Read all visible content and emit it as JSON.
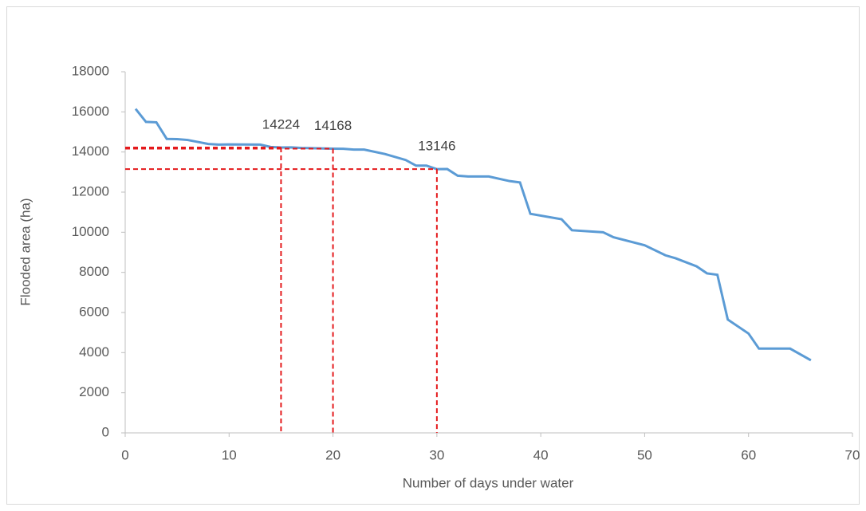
{
  "chart_data": {
    "type": "line",
    "xlabel": "Number of days under water",
    "ylabel": "Flooded area (ha)",
    "series": [
      {
        "name": "Flooded area",
        "color": "#5b9bd5",
        "x": [
          1,
          2,
          3,
          4,
          5,
          6,
          7,
          8,
          9,
          10,
          13,
          14,
          15,
          16,
          17,
          20,
          21,
          22,
          23,
          25,
          27,
          28,
          29,
          30,
          31,
          32,
          33,
          35,
          37,
          38,
          39,
          42,
          43,
          46,
          47,
          50,
          52,
          53,
          55,
          56,
          57,
          58,
          60,
          61,
          64,
          66
        ],
        "values": [
          16150,
          15500,
          15480,
          14650,
          14640,
          14600,
          14500,
          14400,
          14370,
          14380,
          14370,
          14250,
          14224,
          14230,
          14200,
          14168,
          14160,
          14120,
          14120,
          13900,
          13600,
          13320,
          13320,
          13146,
          13150,
          12820,
          12780,
          12780,
          12550,
          12480,
          10920,
          10650,
          10100,
          10000,
          9750,
          9350,
          8850,
          8700,
          8300,
          7950,
          7880,
          5650,
          4950,
          4200,
          4200,
          3620
        ]
      }
    ],
    "annotations": [
      {
        "x": 15,
        "y": 14224
      },
      {
        "x": 20,
        "y": 14168
      },
      {
        "x": 30,
        "y": 13146
      }
    ],
    "annotation_color": "#e41a1c",
    "xlim": [
      0,
      70
    ],
    "xticks": [
      0,
      10,
      20,
      30,
      40,
      50,
      60,
      70
    ],
    "ylim": [
      0,
      18000
    ],
    "yticks": [
      0,
      2000,
      4000,
      6000,
      8000,
      10000,
      12000,
      14000,
      16000,
      18000
    ],
    "grid": false
  }
}
